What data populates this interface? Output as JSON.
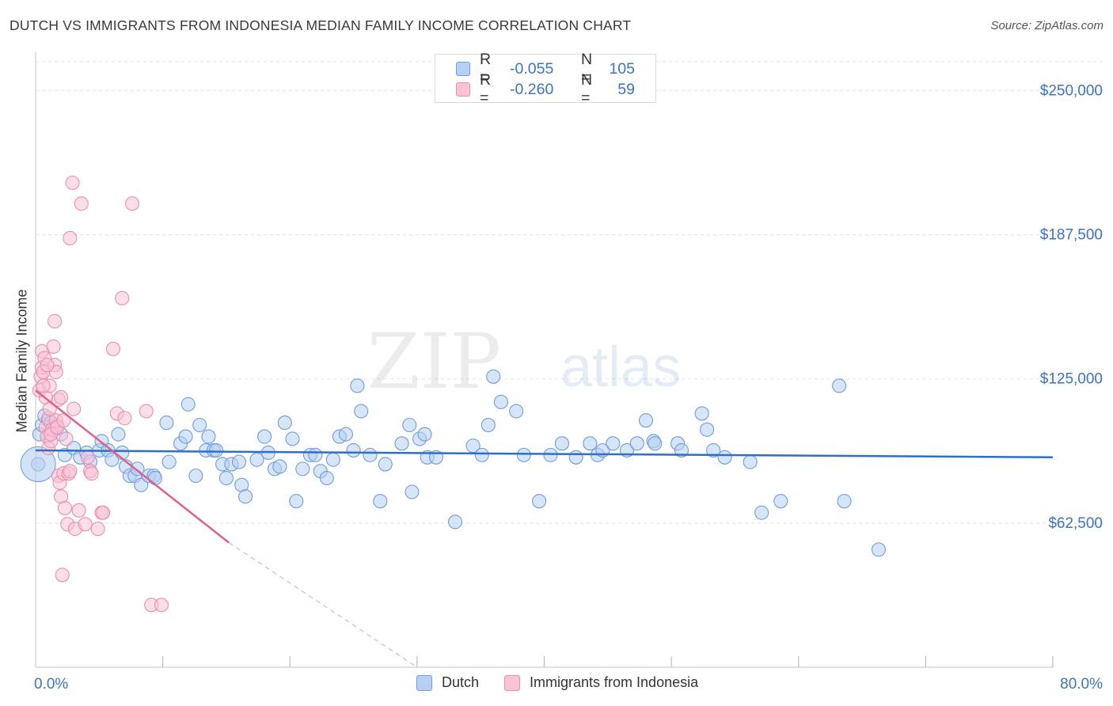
{
  "header": {
    "title": "DUTCH VS IMMIGRANTS FROM INDONESIA MEDIAN FAMILY INCOME CORRELATION CHART",
    "source": "Source: ZipAtlas.com"
  },
  "legend": {
    "rows": [
      {
        "r_label": "R =",
        "r_value": "-0.055",
        "n_label": "N =",
        "n_value": "105"
      },
      {
        "r_label": "R =",
        "r_value": "-0.260",
        "n_label": "N =",
        "n_value": "59"
      }
    ]
  },
  "bottom_legend": [
    "Dutch",
    "Immigrants from Indonesia"
  ],
  "colors": {
    "dutch_fill": "#b7cff3",
    "dutch_stroke": "#6f9de0",
    "dutch_line": "#2e6fc9",
    "indo_fill": "#f8c3d4",
    "indo_stroke": "#ec8eaf",
    "indo_line": "#e0618e",
    "axis_label": "#3b74c6",
    "grid": "#e3e3e3"
  },
  "watermark": {
    "zip": "ZIP",
    "atlas": "atlas"
  },
  "chart_data": {
    "type": "scatter",
    "title": "DUTCH VS IMMIGRANTS FROM INDONESIA MEDIAN FAMILY INCOME CORRELATION CHART",
    "xlabel": "",
    "ylabel": "Median Family Income",
    "xlim": [
      0,
      80
    ],
    "ylim": [
      0,
      262500
    ],
    "x_tick_labels": [
      "0.0%",
      "80.0%"
    ],
    "y_ticks": [
      62500,
      125000,
      187500,
      250000
    ],
    "y_tick_labels": [
      "$62,500",
      "$125,000",
      "$187,500",
      "$250,000"
    ],
    "series": [
      {
        "name": "Dutch",
        "R": -0.055,
        "N": 105,
        "trend": {
          "x": [
            0,
            80
          ],
          "y": [
            94000,
            91000
          ]
        },
        "points": [
          [
            0.2,
            88000
          ],
          [
            0.3,
            101000
          ],
          [
            0.5,
            105000
          ],
          [
            0.7,
            109000
          ],
          [
            0.9,
            100000
          ],
          [
            1.0,
            107000
          ],
          [
            1.2,
            106000
          ],
          [
            1.5,
            103000
          ],
          [
            2.0,
            101000
          ],
          [
            2.3,
            92000
          ],
          [
            3.0,
            95000
          ],
          [
            3.5,
            91000
          ],
          [
            4.0,
            93000
          ],
          [
            4.3,
            89000
          ],
          [
            5.0,
            94000
          ],
          [
            5.2,
            98000
          ],
          [
            5.7,
            94000
          ],
          [
            6.0,
            90000
          ],
          [
            6.5,
            101000
          ],
          [
            6.8,
            93000
          ],
          [
            7.1,
            87000
          ],
          [
            7.4,
            83000
          ],
          [
            7.8,
            83000
          ],
          [
            8.0,
            86000
          ],
          [
            8.3,
            79000
          ],
          [
            8.9,
            83000
          ],
          [
            9.3,
            83000
          ],
          [
            9.4,
            82000
          ],
          [
            10.3,
            106000
          ],
          [
            10.5,
            89000
          ],
          [
            11.4,
            97000
          ],
          [
            11.8,
            100000
          ],
          [
            12.0,
            114000
          ],
          [
            12.6,
            83000
          ],
          [
            12.9,
            105000
          ],
          [
            13.4,
            94000
          ],
          [
            13.6,
            100000
          ],
          [
            14.0,
            94000
          ],
          [
            14.2,
            94000
          ],
          [
            14.7,
            88000
          ],
          [
            15.0,
            82000
          ],
          [
            15.4,
            88000
          ],
          [
            16.0,
            89000
          ],
          [
            16.2,
            79000
          ],
          [
            16.5,
            74000
          ],
          [
            17.4,
            90000
          ],
          [
            18.0,
            100000
          ],
          [
            18.3,
            93000
          ],
          [
            18.8,
            86000
          ],
          [
            19.2,
            87000
          ],
          [
            19.6,
            106000
          ],
          [
            20.2,
            99000
          ],
          [
            20.5,
            72000
          ],
          [
            21.0,
            86000
          ],
          [
            21.6,
            92000
          ],
          [
            22.0,
            92000
          ],
          [
            22.4,
            85000
          ],
          [
            22.9,
            82000
          ],
          [
            23.4,
            90000
          ],
          [
            23.9,
            100000
          ],
          [
            24.4,
            101000
          ],
          [
            25.0,
            94000
          ],
          [
            25.3,
            122000
          ],
          [
            25.6,
            111000
          ],
          [
            26.3,
            92000
          ],
          [
            27.1,
            72000
          ],
          [
            27.5,
            88000
          ],
          [
            28.8,
            97000
          ],
          [
            29.4,
            105000
          ],
          [
            29.6,
            76000
          ],
          [
            30.2,
            99000
          ],
          [
            30.6,
            101000
          ],
          [
            30.8,
            91000
          ],
          [
            31.5,
            91000
          ],
          [
            33.0,
            63000
          ],
          [
            34.4,
            96000
          ],
          [
            35.1,
            92000
          ],
          [
            35.6,
            105000
          ],
          [
            36.0,
            126000
          ],
          [
            36.6,
            115000
          ],
          [
            37.8,
            111000
          ],
          [
            38.4,
            92000
          ],
          [
            39.6,
            72000
          ],
          [
            40.5,
            92000
          ],
          [
            41.4,
            97000
          ],
          [
            42.5,
            91000
          ],
          [
            43.6,
            97000
          ],
          [
            44.2,
            92000
          ],
          [
            44.6,
            94000
          ],
          [
            45.4,
            97000
          ],
          [
            46.5,
            94000
          ],
          [
            47.3,
            97000
          ],
          [
            48.0,
            107000
          ],
          [
            48.6,
            98000
          ],
          [
            50.5,
            97000
          ],
          [
            50.8,
            94000
          ],
          [
            52.4,
            110000
          ],
          [
            52.8,
            103000
          ],
          [
            54.2,
            91000
          ],
          [
            53.3,
            94000
          ],
          [
            56.2,
            89000
          ],
          [
            57.1,
            67000
          ],
          [
            58.6,
            72000
          ],
          [
            63.2,
            122000
          ],
          [
            63.6,
            72000
          ],
          [
            66.3,
            51000
          ],
          [
            48.7,
            97000
          ]
        ]
      },
      {
        "name": "Immigrants from Indonesia",
        "R": -0.26,
        "N": 59,
        "trend": {
          "x": [
            0,
            15.2
          ],
          "y": [
            120000,
            54000
          ]
        },
        "trend_dashed": {
          "x": [
            15.2,
            30
          ],
          "y": [
            54000,
            0
          ]
        },
        "points": [
          [
            0.3,
            120000
          ],
          [
            0.4,
            126000
          ],
          [
            0.5,
            130000
          ],
          [
            0.5,
            137000
          ],
          [
            0.6,
            128000
          ],
          [
            0.7,
            134000
          ],
          [
            0.8,
            117000
          ],
          [
            0.8,
            104000
          ],
          [
            0.9,
            100000
          ],
          [
            1.0,
            108000
          ],
          [
            1.0,
            95000
          ],
          [
            1.1,
            122000
          ],
          [
            1.1,
            112000
          ],
          [
            1.2,
            98000
          ],
          [
            1.3,
            103000
          ],
          [
            1.4,
            139000
          ],
          [
            1.5,
            150000
          ],
          [
            1.5,
            131000
          ],
          [
            1.6,
            128000
          ],
          [
            1.7,
            105000
          ],
          [
            1.8,
            116000
          ],
          [
            1.8,
            83000
          ],
          [
            1.9,
            80000
          ],
          [
            2.0,
            74000
          ],
          [
            2.1,
            40000
          ],
          [
            2.2,
            84000
          ],
          [
            2.3,
            69000
          ],
          [
            2.4,
            99000
          ],
          [
            2.5,
            62000
          ],
          [
            2.6,
            84000
          ],
          [
            2.7,
            85000
          ],
          [
            2.7,
            186000
          ],
          [
            2.9,
            210000
          ],
          [
            3.0,
            112000
          ],
          [
            3.1,
            60000
          ],
          [
            3.4,
            68000
          ],
          [
            3.6,
            201000
          ],
          [
            3.9,
            62000
          ],
          [
            4.1,
            91000
          ],
          [
            4.3,
            85000
          ],
          [
            4.4,
            84000
          ],
          [
            4.9,
            60000
          ],
          [
            5.2,
            67000
          ],
          [
            5.3,
            67000
          ],
          [
            6.1,
            138000
          ],
          [
            6.4,
            110000
          ],
          [
            6.8,
            160000
          ],
          [
            7.0,
            108000
          ],
          [
            7.6,
            201000
          ],
          [
            8.7,
            111000
          ],
          [
            9.1,
            27000
          ],
          [
            9.9,
            27000
          ],
          [
            1.2,
            101000
          ],
          [
            1.6,
            107000
          ],
          [
            2.0,
            117000
          ],
          [
            0.6,
            122000
          ],
          [
            0.9,
            131000
          ],
          [
            1.7,
            104000
          ],
          [
            2.2,
            107000
          ]
        ]
      }
    ]
  }
}
